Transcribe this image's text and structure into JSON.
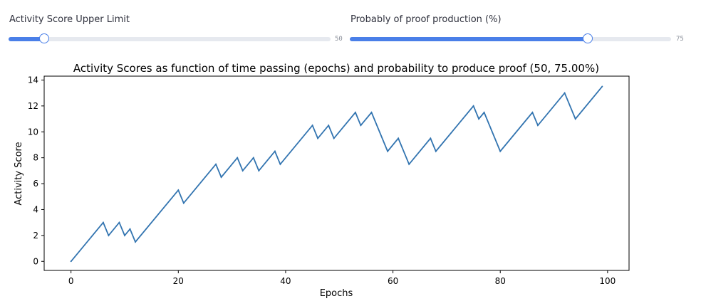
{
  "sliders": [
    {
      "label": "Activity Score Upper Limit",
      "max_label": "50",
      "fraction": 0.11
    },
    {
      "label": "Probably of proof production (%)",
      "max_label": "75",
      "fraction": 0.74
    }
  ],
  "colors": {
    "accent": "#4a7fe8",
    "track": "#e6e9ef",
    "line": "#3274b0"
  },
  "chart_data": {
    "type": "line",
    "title": "Activity Scores as function of time passing (epochs) and probability to produce proof (50, 75.00%)",
    "xlabel": "Epochs",
    "ylabel": "Activity Score",
    "xlim": [
      -5,
      104
    ],
    "ylim": [
      -0.7,
      14.3
    ],
    "xticks": [
      0,
      20,
      40,
      60,
      80,
      100
    ],
    "yticks": [
      0,
      2,
      4,
      6,
      8,
      10,
      12,
      14
    ],
    "grid": false,
    "x": [
      0,
      6,
      7,
      9,
      10,
      11,
      12,
      20,
      21,
      27,
      28,
      31,
      32,
      34,
      35,
      38,
      39,
      45,
      46,
      48,
      49,
      53,
      54,
      56,
      59,
      61,
      63,
      67,
      68,
      75,
      76,
      77,
      80,
      86,
      87,
      92,
      94,
      99
    ],
    "y": [
      0,
      3,
      2,
      3,
      2,
      2.5,
      1.5,
      5.5,
      4.5,
      7.5,
      6.5,
      8,
      7,
      8,
      7,
      8.5,
      7.5,
      10.5,
      9.5,
      10.5,
      9.5,
      11.5,
      10.5,
      11.5,
      8.5,
      9.5,
      7.5,
      9.5,
      8.5,
      12,
      11,
      11.5,
      8.5,
      11.5,
      10.5,
      13,
      11,
      13.5
    ]
  }
}
